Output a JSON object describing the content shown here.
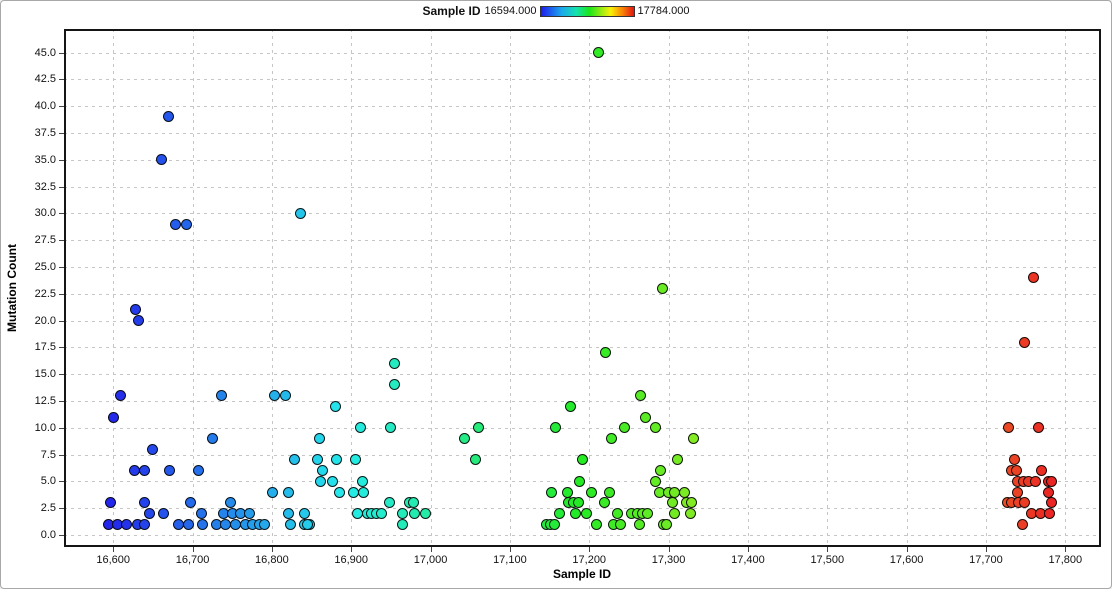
{
  "legend": {
    "title": "Sample ID",
    "min_label": "16594.000",
    "max_label": "17784.000"
  },
  "axes": {
    "x": {
      "label": "Sample ID",
      "tick_labels": [
        "16,600",
        "16,700",
        "16,800",
        "16,900",
        "17,000",
        "17,100",
        "17,200",
        "17,300",
        "17,400",
        "17,500",
        "17,600",
        "17,700",
        "17,800"
      ],
      "tick_values": [
        16600,
        16700,
        16800,
        16900,
        17000,
        17100,
        17200,
        17300,
        17400,
        17500,
        17600,
        17700,
        17800
      ],
      "range": [
        16538,
        17845
      ]
    },
    "y": {
      "label": "Mutation Count",
      "tick_labels": [
        "0.0",
        "2.5",
        "5.0",
        "7.5",
        "10.0",
        "12.5",
        "15.0",
        "17.5",
        "20.0",
        "22.5",
        "25.0",
        "27.5",
        "30.0",
        "32.5",
        "35.0",
        "37.5",
        "40.0",
        "42.5",
        "45.0"
      ],
      "tick_values": [
        0,
        2.5,
        5,
        7.5,
        10,
        12.5,
        15,
        17.5,
        20,
        22.5,
        25,
        27.5,
        30,
        32.5,
        35,
        37.5,
        40,
        42.5,
        45
      ],
      "range": [
        -1.12,
        47.21
      ]
    }
  },
  "chart_data": {
    "type": "scatter",
    "xlabel": "Sample ID",
    "ylabel": "Mutation Count",
    "grid": true,
    "legend_position": "top-center",
    "color_scale": {
      "field": "Sample ID",
      "min": 16594,
      "max": 17784,
      "type": "rainbow-blue-to-red",
      "low_color": "#2233ee",
      "high_color": "#ee3322"
    },
    "xlim": [
      16538,
      17845
    ],
    "ylim": [
      -1.12,
      47.21
    ],
    "points": [
      [
        16628,
        21
      ],
      [
        16632,
        20
      ],
      [
        16670,
        39
      ],
      [
        16661,
        35
      ],
      [
        16679,
        29
      ],
      [
        16692,
        29
      ],
      [
        16609,
        13
      ],
      [
        16600,
        11
      ],
      [
        16649,
        8
      ],
      [
        16627,
        6
      ],
      [
        16640,
        6
      ],
      [
        16671,
        6
      ],
      [
        16597,
        3
      ],
      [
        16639,
        3
      ],
      [
        16646,
        2
      ],
      [
        16664,
        2
      ],
      [
        16594,
        1
      ],
      [
        16606,
        1
      ],
      [
        16617,
        1
      ],
      [
        16631,
        1
      ],
      [
        16640,
        1
      ],
      [
        16682,
        1
      ],
      [
        16695,
        1
      ],
      [
        16737,
        13
      ],
      [
        16725,
        9
      ],
      [
        16707,
        6
      ],
      [
        16698,
        3
      ],
      [
        16748,
        3
      ],
      [
        16711,
        2
      ],
      [
        16739,
        2
      ],
      [
        16751,
        2
      ],
      [
        16761,
        2
      ],
      [
        16772,
        2
      ],
      [
        16712,
        1
      ],
      [
        16730,
        1
      ],
      [
        16742,
        1
      ],
      [
        16754,
        1
      ],
      [
        16767,
        1
      ],
      [
        16775,
        1
      ],
      [
        16784,
        1
      ],
      [
        16791,
        1
      ],
      [
        16803,
        13
      ],
      [
        16817,
        13
      ],
      [
        16836,
        30
      ],
      [
        16880,
        12
      ],
      [
        16860,
        9
      ],
      [
        16828,
        7
      ],
      [
        16858,
        7
      ],
      [
        16882,
        7
      ],
      [
        16864,
        6
      ],
      [
        16861,
        5
      ],
      [
        16876,
        5
      ],
      [
        16801,
        4
      ],
      [
        16821,
        4
      ],
      [
        16885,
        4
      ],
      [
        16821,
        2
      ],
      [
        16841,
        2
      ],
      [
        16824,
        1
      ],
      [
        16841,
        1
      ],
      [
        16848,
        1
      ],
      [
        16845,
        1
      ],
      [
        16955,
        16
      ],
      [
        16954,
        14
      ],
      [
        16912,
        10
      ],
      [
        16950,
        10
      ],
      [
        16905,
        7
      ],
      [
        16914,
        5
      ],
      [
        16903,
        4
      ],
      [
        16916,
        4
      ],
      [
        16948,
        3
      ],
      [
        16974,
        3
      ],
      [
        16978,
        3
      ],
      [
        16908,
        2
      ],
      [
        16920,
        2
      ],
      [
        16926,
        2
      ],
      [
        16932,
        2
      ],
      [
        16938,
        2
      ],
      [
        16965,
        2
      ],
      [
        16980,
        2
      ],
      [
        16993,
        2
      ],
      [
        16965,
        1
      ],
      [
        17061,
        10
      ],
      [
        17043,
        9
      ],
      [
        17057,
        7
      ],
      [
        17212,
        45
      ],
      [
        17292,
        23
      ],
      [
        17221,
        17
      ],
      [
        17264,
        13
      ],
      [
        17176,
        12
      ],
      [
        17271,
        11
      ],
      [
        17158,
        10
      ],
      [
        17245,
        10
      ],
      [
        17284,
        10
      ],
      [
        17228,
        9
      ],
      [
        17332,
        9
      ],
      [
        17191,
        7
      ],
      [
        17311,
        7
      ],
      [
        17290,
        6
      ],
      [
        17188,
        5
      ],
      [
        17283,
        5
      ],
      [
        17153,
        4
      ],
      [
        17173,
        4
      ],
      [
        17203,
        4
      ],
      [
        17225,
        4
      ],
      [
        17288,
        4
      ],
      [
        17300,
        4
      ],
      [
        17307,
        4
      ],
      [
        17320,
        4
      ],
      [
        17174,
        3
      ],
      [
        17180,
        3
      ],
      [
        17187,
        3
      ],
      [
        17219,
        3
      ],
      [
        17305,
        3
      ],
      [
        17322,
        3
      ],
      [
        17329,
        3
      ],
      [
        17162,
        2
      ],
      [
        17183,
        2
      ],
      [
        17196,
        2
      ],
      [
        17236,
        2
      ],
      [
        17253,
        2
      ],
      [
        17261,
        2
      ],
      [
        17267,
        2
      ],
      [
        17274,
        2
      ],
      [
        17307,
        2
      ],
      [
        17327,
        2
      ],
      [
        17146,
        1
      ],
      [
        17151,
        1
      ],
      [
        17156,
        1
      ],
      [
        17209,
        1
      ],
      [
        17230,
        1
      ],
      [
        17240,
        1
      ],
      [
        17263,
        1
      ],
      [
        17293,
        1
      ],
      [
        17297,
        1
      ],
      [
        17760,
        24
      ],
      [
        17749,
        18
      ],
      [
        17729,
        10
      ],
      [
        17766,
        10
      ],
      [
        17736,
        7
      ],
      [
        17732,
        6
      ],
      [
        17739,
        6
      ],
      [
        17770,
        6
      ],
      [
        17740,
        5
      ],
      [
        17747,
        5
      ],
      [
        17754,
        5
      ],
      [
        17762,
        5
      ],
      [
        17779,
        5
      ],
      [
        17783,
        5
      ],
      [
        17740,
        4
      ],
      [
        17779,
        4
      ],
      [
        17727,
        3
      ],
      [
        17732,
        3
      ],
      [
        17741,
        3
      ],
      [
        17748,
        3
      ],
      [
        17783,
        3
      ],
      [
        17757,
        2
      ],
      [
        17769,
        2
      ],
      [
        17780,
        2
      ],
      [
        17746,
        1
      ]
    ]
  }
}
